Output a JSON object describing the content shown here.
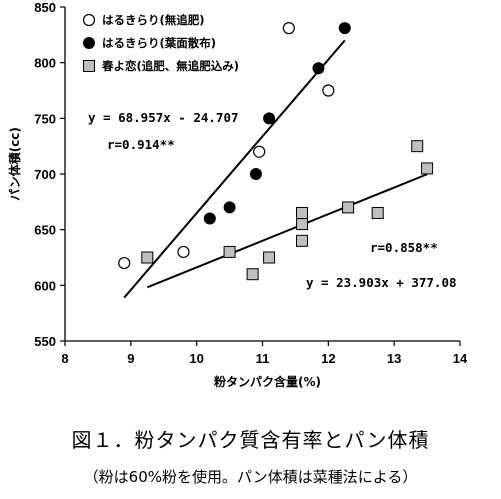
{
  "chart_data": {
    "type": "scatter",
    "xlabel": "粉タンパク含量(%)",
    "ylabel": "パン体積(cc)",
    "xlim": [
      8,
      14
    ],
    "ylim": [
      550,
      850
    ],
    "x_ticks": [
      "8",
      "9",
      "10",
      "11",
      "12",
      "13",
      "14"
    ],
    "y_ticks": [
      "550",
      "600",
      "650",
      "700",
      "750",
      "800",
      "850"
    ],
    "grid": false,
    "legend_position": "top-left",
    "series": [
      {
        "name": "はるきらり(無追肥)",
        "marker": "open-circle",
        "points": [
          [
            8.9,
            620
          ],
          [
            9.8,
            630
          ],
          [
            10.95,
            720
          ],
          [
            11.4,
            831
          ],
          [
            12.0,
            775
          ]
        ]
      },
      {
        "name": "はるきらり(葉面散布)",
        "marker": "filled-circle",
        "points": [
          [
            10.2,
            660
          ],
          [
            10.5,
            670
          ],
          [
            10.9,
            700
          ],
          [
            11.1,
            750
          ],
          [
            11.85,
            795
          ],
          [
            12.25,
            831
          ]
        ]
      },
      {
        "name": "春よ恋(追肥、無追肥込み)",
        "marker": "gray-square",
        "points": [
          [
            9.25,
            625
          ],
          [
            10.5,
            630
          ],
          [
            10.85,
            610
          ],
          [
            11.1,
            625
          ],
          [
            11.6,
            665
          ],
          [
            11.6,
            655
          ],
          [
            11.6,
            640
          ],
          [
            12.3,
            670
          ],
          [
            12.75,
            665
          ],
          [
            13.35,
            725
          ],
          [
            13.5,
            705
          ]
        ]
      }
    ],
    "regressions": [
      {
        "equation": "y = 68.957x - 24.707",
        "r_label": "r=0.914**",
        "x_range": [
          8.9,
          12.25
        ],
        "slope": 68.957,
        "intercept": -24.707
      },
      {
        "equation": "y = 23.903x + 377.08",
        "r_label": "r=0.858**",
        "x_range": [
          9.25,
          13.5
        ],
        "slope": 23.903,
        "intercept": 377.08
      }
    ]
  },
  "caption": "図１．粉タンパク質含有率とパン体積",
  "subcaption": "（粉は60%粉を使用。パン体積は菜種法による）",
  "colors": {
    "axis": "#000000",
    "open_fill": "#ffffff",
    "filled": "#000000",
    "square_fill": "#bfbfbf"
  }
}
